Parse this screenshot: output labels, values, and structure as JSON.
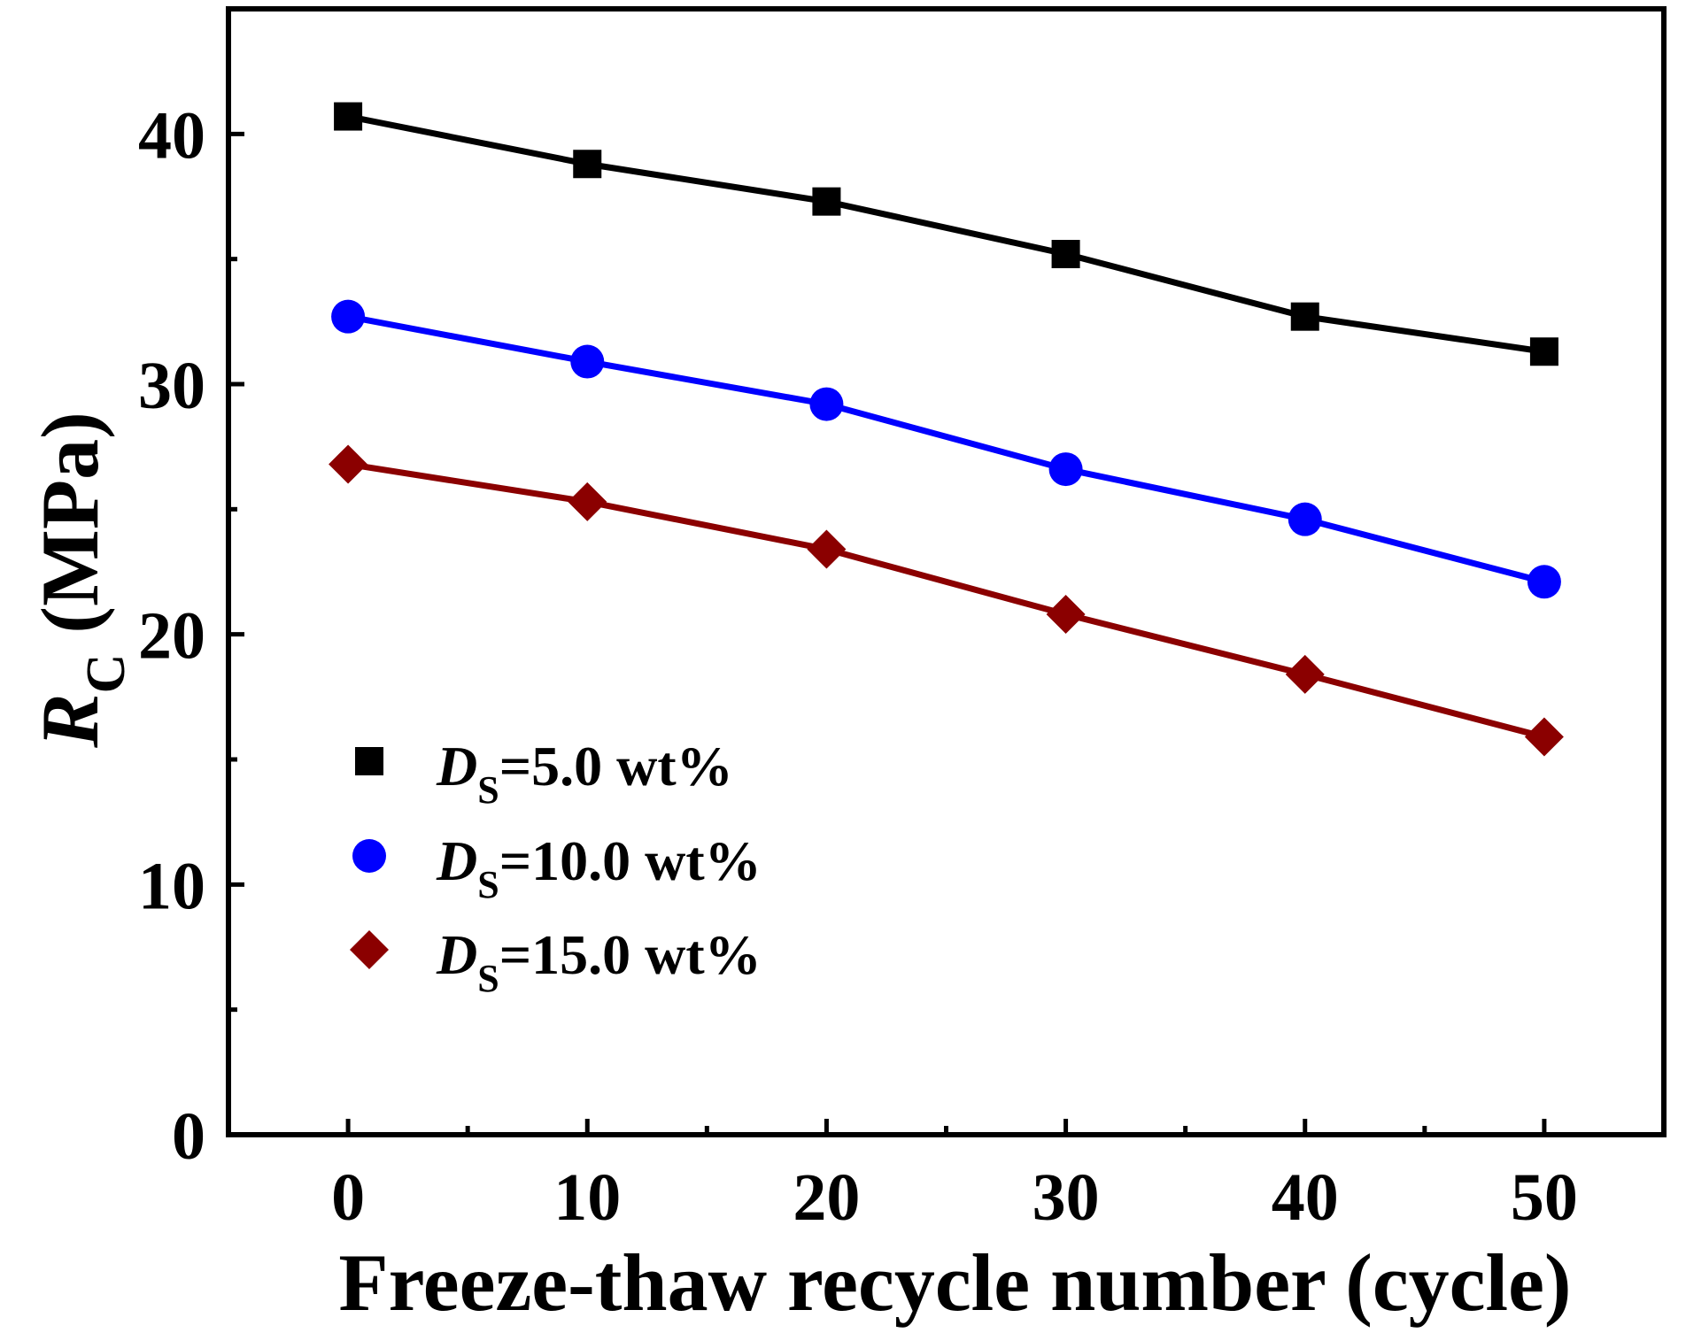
{
  "chart_data": {
    "type": "line",
    "title": "",
    "xlabel": "Freeze-thaw recycle number (cycle)",
    "ylabel": {
      "main": "R",
      "subscript": "C",
      "unit": "(MPa)"
    },
    "x": [
      0,
      10,
      20,
      30,
      40,
      50
    ],
    "xlim": [
      -5,
      55
    ],
    "ylim": [
      0,
      45
    ],
    "xticks": [
      0,
      10,
      20,
      30,
      40,
      50
    ],
    "xtick_labels": [
      "0",
      "10",
      "20",
      "30",
      "40",
      "50"
    ],
    "xminor": [
      5,
      15,
      25,
      35,
      45
    ],
    "yticks": [
      0,
      10,
      20,
      30,
      40
    ],
    "ytick_labels": [
      "0",
      "10",
      "20",
      "30",
      "40"
    ],
    "yminor": [
      5,
      15,
      25,
      35
    ],
    "legend_position": "lower-left",
    "series": [
      {
        "name": "D_S=5.0 wt%",
        "label_main": "D",
        "label_sub": "S",
        "label_rest": "=5.0 wt%",
        "marker": "square",
        "color": "#000000",
        "values": [
          40.7,
          38.8,
          37.3,
          35.2,
          32.7,
          31.3
        ]
      },
      {
        "name": "D_S=10.0 wt%",
        "label_main": "D",
        "label_sub": "S",
        "label_rest": "=10.0 wt%",
        "marker": "circle",
        "color": "#0000ff",
        "values": [
          32.7,
          30.9,
          29.2,
          26.6,
          24.6,
          22.1
        ]
      },
      {
        "name": "D_S=15.0 wt%",
        "label_main": "D",
        "label_sub": "S",
        "label_rest": "=15.0 wt%",
        "marker": "diamond",
        "color": "#8b0000",
        "values": [
          26.8,
          25.3,
          23.4,
          20.8,
          18.4,
          15.9
        ]
      }
    ]
  }
}
